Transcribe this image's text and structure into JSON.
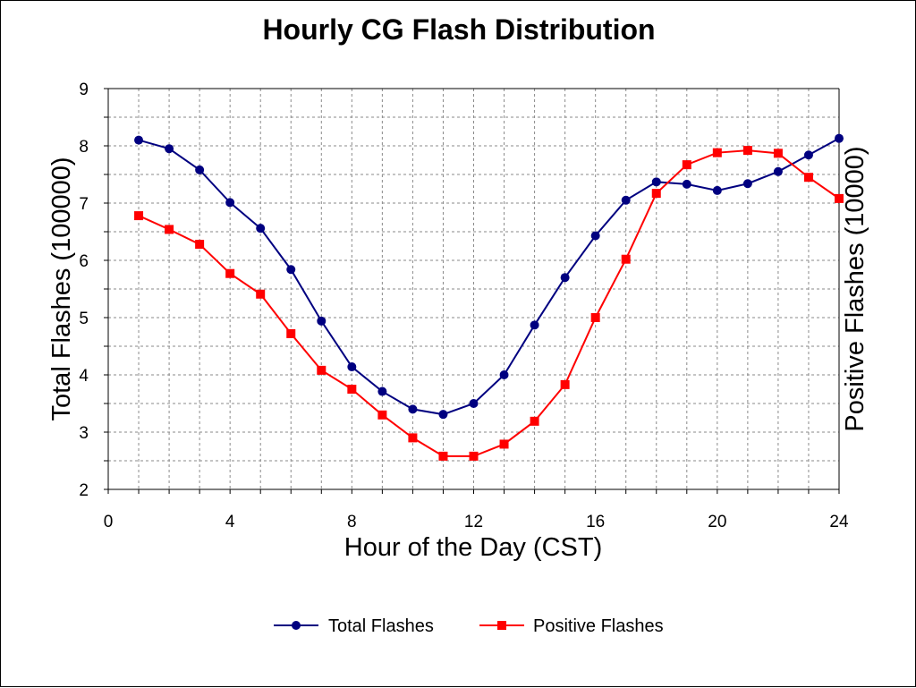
{
  "chart_data": {
    "type": "line",
    "title": "Hourly CG Flash Distribution",
    "xlabel": "Hour of the Day (CST)",
    "ylabel": "Total Flashes (100000)",
    "y2label": "Positive Flashes (10000)",
    "xlim": [
      0,
      24
    ],
    "ylim": [
      2,
      9
    ],
    "xticks": [
      "0",
      "4",
      "8",
      "12",
      "16",
      "20",
      "24"
    ],
    "yticks": [
      "2",
      "3",
      "4",
      "5",
      "6",
      "7",
      "8",
      "9"
    ],
    "grid": true,
    "legend_position": "bottom",
    "x": [
      1,
      2,
      3,
      4,
      5,
      6,
      7,
      8,
      9,
      10,
      11,
      12,
      13,
      14,
      15,
      16,
      17,
      18,
      19,
      20,
      21,
      22,
      23,
      24
    ],
    "series": [
      {
        "name": "Total Flashes",
        "color": "#000080",
        "marker": "circle",
        "values": [
          8.1,
          7.95,
          7.58,
          7.01,
          6.56,
          5.84,
          4.94,
          4.14,
          3.71,
          3.4,
          3.31,
          3.5,
          4.0,
          4.87,
          5.7,
          6.43,
          7.05,
          7.37,
          7.33,
          7.22,
          7.34,
          7.55,
          7.84,
          8.13
        ]
      },
      {
        "name": "Positive Flashes",
        "color": "#ff0000",
        "marker": "square",
        "values": [
          6.78,
          6.54,
          6.28,
          5.77,
          5.41,
          4.72,
          4.08,
          3.75,
          3.3,
          2.9,
          2.58,
          2.58,
          2.79,
          3.19,
          3.83,
          5.0,
          6.02,
          7.17,
          7.67,
          7.88,
          7.92,
          7.87,
          7.45,
          7.08
        ]
      }
    ]
  }
}
